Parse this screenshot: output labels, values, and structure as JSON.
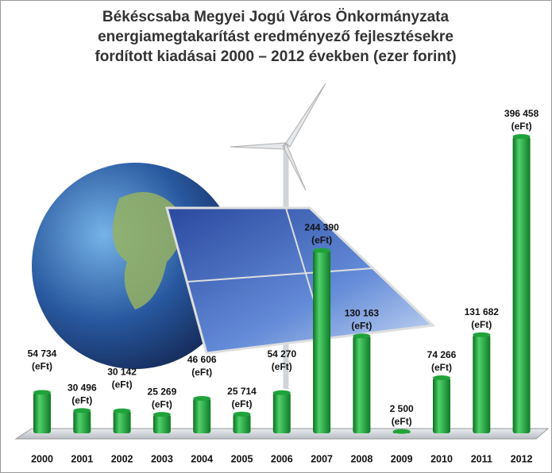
{
  "chart_data": {
    "type": "bar",
    "title": [
      "Békéscsaba Megyei Jogú Város Önkormányzata",
      "energiamegtakarítást eredményező fejlesztésekre",
      "fordított kiadásai 2000 – 2012 években (ezer forint)"
    ],
    "categories": [
      "2000",
      "2001",
      "2002",
      "2003",
      "2004",
      "2005",
      "2006",
      "2007",
      "2008",
      "2009",
      "2010",
      "2011",
      "2012"
    ],
    "values": [
      54734,
      30496,
      30142,
      25269,
      46606,
      25714,
      54270,
      244390,
      130163,
      2500,
      74266,
      131682,
      396458
    ],
    "value_labels": [
      "54 734",
      "30 496",
      "30 142",
      "25 269",
      "46 606",
      "25 714",
      "54 270",
      "244 390",
      "130 163",
      "2 500",
      "74 266",
      "131 682",
      "396 458"
    ],
    "value_label_unit": "(eFt)",
    "color": "#1fa33a"
  }
}
